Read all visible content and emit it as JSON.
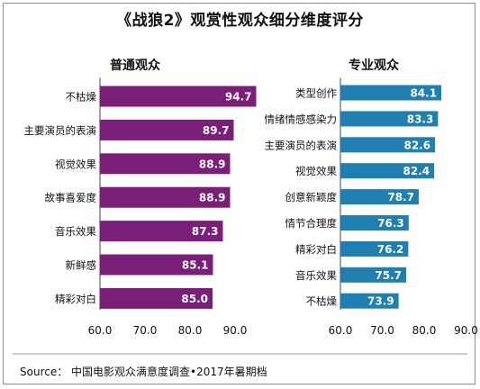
{
  "title": "《战狼2》观赏性观众细分维度评分",
  "source": "Source： 中国电影观众满意度调查•2017年暑期档",
  "chart_data": [
    {
      "type": "bar",
      "orientation": "horizontal",
      "title": "普通观众",
      "color": "#7b1e7a",
      "categories": [
        "不枯燥",
        "主要演员的表演",
        "视觉效果",
        "故事喜爱度",
        "音乐效果",
        "新鲜感",
        "精彩对白"
      ],
      "values": [
        94.7,
        89.7,
        88.9,
        88.9,
        87.3,
        85.1,
        85.0
      ],
      "value_labels": [
        "94.7",
        "89.7",
        "88.9",
        "88.9",
        "87.3",
        "85.1",
        "85.0"
      ],
      "xlim": [
        60,
        95
      ],
      "xticks": [
        "60.0",
        "70.0",
        "80.0",
        "90.0"
      ],
      "grid": false
    },
    {
      "type": "bar",
      "orientation": "horizontal",
      "title": "专业观众",
      "color": "#1f7fb0",
      "categories": [
        "类型创作",
        "情绪情感感染力",
        "主要演员的表演",
        "视觉效果",
        "创意新颖度",
        "情节合理度",
        "精彩对白",
        "音乐效果",
        "不枯燥"
      ],
      "values": [
        84.1,
        83.3,
        82.6,
        82.4,
        78.7,
        76.3,
        76.2,
        75.7,
        73.9
      ],
      "value_labels": [
        "84.1",
        "83.3",
        "82.6",
        "82.4",
        "78.7",
        "76.3",
        "76.2",
        "75.7",
        "73.9"
      ],
      "xlim": [
        60,
        90
      ],
      "xticks": [
        "60.0",
        "70.0",
        "80.0",
        "90.0"
      ],
      "grid": false
    }
  ]
}
